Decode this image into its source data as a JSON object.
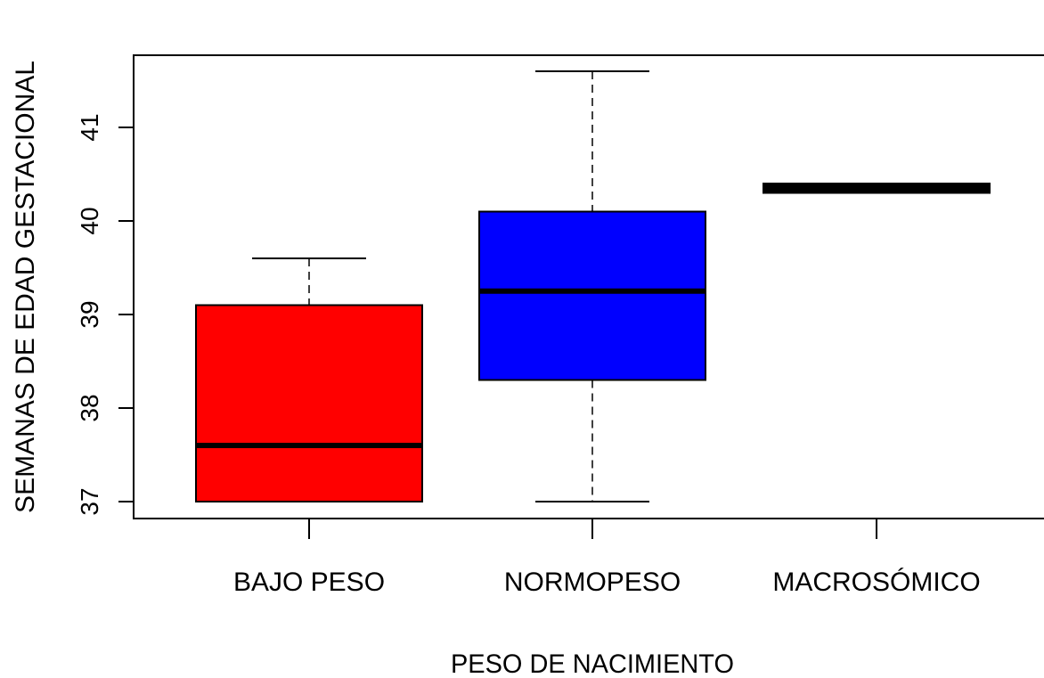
{
  "chart_data": {
    "type": "boxplot",
    "title": "",
    "xlabel": "PESO DE NACIMIENTO",
    "ylabel": "SEMANAS DE EDAD GESTACIONAL",
    "ylim": [
      36.8,
      41.8
    ],
    "yticks": [
      "37",
      "38",
      "39",
      "40",
      "41"
    ],
    "grid": false,
    "categories": [
      "BAJO PESO",
      "NORMOPESO",
      "MACROSÓMICO"
    ],
    "boxes": [
      {
        "category": "BAJO PESO",
        "color": "#ff0000",
        "whisker_low": 37.0,
        "q1": 37.0,
        "median": 37.6,
        "q3": 39.1,
        "whisker_high": 39.6
      },
      {
        "category": "NORMOPESO",
        "color": "#0000ff",
        "whisker_low": 37.0,
        "q1": 38.3,
        "median": 39.25,
        "q3": 40.1,
        "whisker_high": 41.6
      },
      {
        "category": "MACROSÓMICO",
        "color": "#000000",
        "whisker_low": 40.3,
        "q1": 40.3,
        "median": 40.35,
        "q3": 40.4,
        "whisker_high": 40.4
      }
    ]
  }
}
